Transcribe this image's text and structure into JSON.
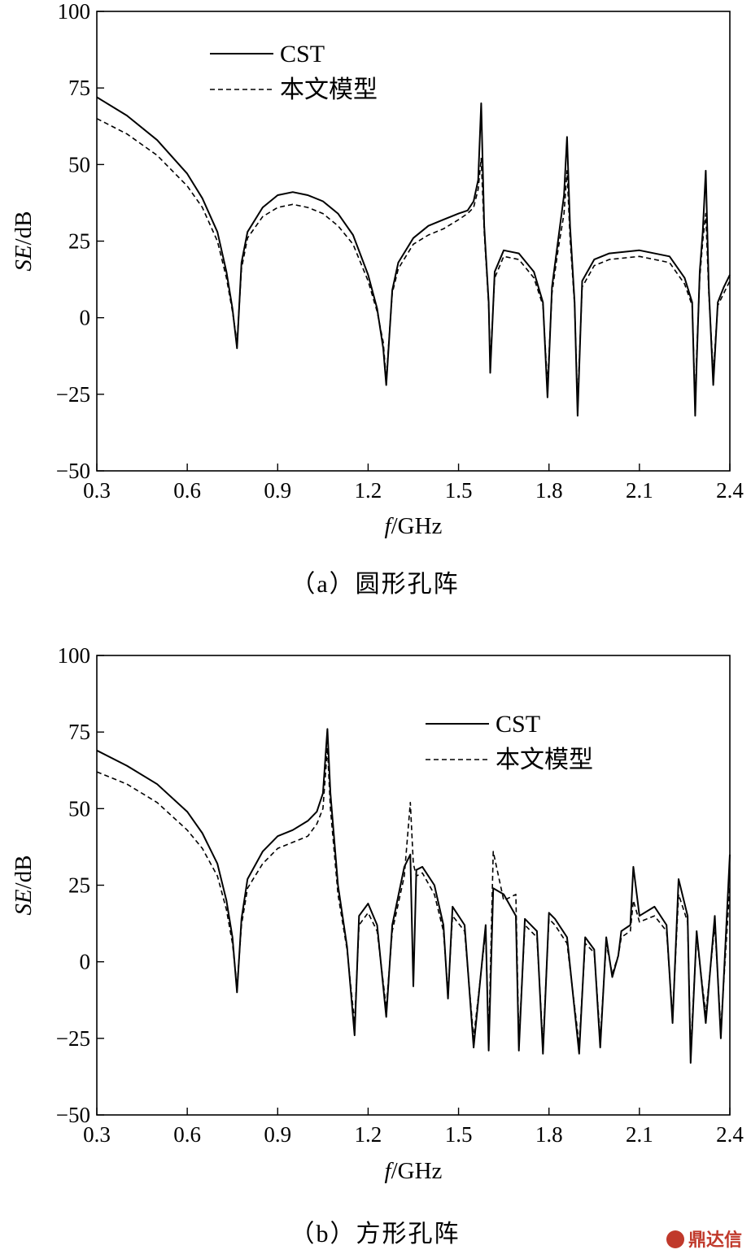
{
  "chart_data": [
    {
      "type": "line",
      "caption": "（a）圆形孔阵",
      "xlabel_italic": "f",
      "xlabel_rest": "/GHz",
      "ylabel_italic": "SE",
      "ylabel_rest": "/dB",
      "xlim": [
        0.3,
        2.4
      ],
      "ylim": [
        -50,
        100
      ],
      "xticks": [
        "0.3",
        "0.6",
        "0.9",
        "1.2",
        "1.5",
        "1.8",
        "2.1",
        "2.4"
      ],
      "yticks": [
        "100",
        "75",
        "50",
        "25",
        "0",
        "−25",
        "−50"
      ],
      "legend_position": "top-left",
      "grid": false,
      "series": [
        {
          "name": "CST",
          "style": "solid",
          "x": [
            0.3,
            0.4,
            0.5,
            0.6,
            0.65,
            0.7,
            0.73,
            0.75,
            0.765,
            0.78,
            0.8,
            0.85,
            0.9,
            0.95,
            1.0,
            1.05,
            1.1,
            1.15,
            1.2,
            1.23,
            1.25,
            1.26,
            1.28,
            1.3,
            1.35,
            1.4,
            1.45,
            1.5,
            1.53,
            1.55,
            1.565,
            1.575,
            1.585,
            1.6,
            1.605,
            1.62,
            1.65,
            1.7,
            1.75,
            1.78,
            1.795,
            1.81,
            1.83,
            1.85,
            1.86,
            1.87,
            1.885,
            1.895,
            1.91,
            1.95,
            2.0,
            2.1,
            2.2,
            2.25,
            2.275,
            2.285,
            2.29,
            2.3,
            2.31,
            2.32,
            2.33,
            2.345,
            2.36,
            2.38,
            2.4
          ],
          "y": [
            72,
            66,
            58,
            47,
            39,
            28,
            15,
            3,
            -10,
            18,
            28,
            36,
            40,
            41,
            40,
            38,
            34,
            27,
            14,
            3,
            -10,
            -22,
            9,
            18,
            26,
            30,
            32,
            34,
            35,
            38,
            45,
            70,
            30,
            5,
            -18,
            15,
            22,
            21,
            15,
            5,
            -26,
            10,
            25,
            40,
            59,
            30,
            5,
            -32,
            12,
            19,
            21,
            22,
            20,
            13,
            5,
            -32,
            -15,
            15,
            28,
            48,
            10,
            -22,
            5,
            10,
            14
          ]
        },
        {
          "name": "本文模型",
          "style": "dashed",
          "x": [
            0.3,
            0.4,
            0.5,
            0.6,
            0.65,
            0.7,
            0.73,
            0.75,
            0.765,
            0.78,
            0.8,
            0.85,
            0.9,
            0.95,
            1.0,
            1.05,
            1.1,
            1.15,
            1.2,
            1.23,
            1.25,
            1.26,
            1.28,
            1.3,
            1.35,
            1.4,
            1.45,
            1.5,
            1.53,
            1.55,
            1.565,
            1.575,
            1.585,
            1.6,
            1.605,
            1.62,
            1.65,
            1.7,
            1.75,
            1.78,
            1.795,
            1.81,
            1.83,
            1.85,
            1.86,
            1.87,
            1.885,
            1.895,
            1.91,
            1.95,
            2.0,
            2.1,
            2.2,
            2.25,
            2.275,
            2.285,
            2.29,
            2.3,
            2.31,
            2.32,
            2.33,
            2.345,
            2.36,
            2.38,
            2.4
          ],
          "y": [
            65,
            60,
            53,
            43,
            36,
            25,
            13,
            2,
            -8,
            16,
            26,
            33,
            36,
            37,
            36,
            34,
            30,
            24,
            12,
            2,
            -8,
            -20,
            8,
            16,
            24,
            27,
            29,
            32,
            34,
            36,
            42,
            52,
            28,
            4,
            -15,
            13,
            20,
            19,
            13,
            4,
            -22,
            8,
            22,
            34,
            48,
            26,
            4,
            -28,
            10,
            17,
            19,
            20,
            18,
            11,
            4,
            -28,
            -12,
            13,
            25,
            34,
            8,
            -18,
            4,
            8,
            12
          ]
        }
      ]
    },
    {
      "type": "line",
      "caption": "（b）方形孔阵",
      "xlabel_italic": "f",
      "xlabel_rest": "/GHz",
      "ylabel_italic": "SE",
      "ylabel_rest": "/dB",
      "xlim": [
        0.3,
        2.4
      ],
      "ylim": [
        -50,
        100
      ],
      "xticks": [
        "0.3",
        "0.6",
        "0.9",
        "1.2",
        "1.5",
        "1.8",
        "2.1",
        "2.4"
      ],
      "yticks": [
        "100",
        "75",
        "50",
        "25",
        "0",
        "−25",
        "−50"
      ],
      "legend_position": "top-right",
      "grid": false,
      "series": [
        {
          "name": "CST",
          "style": "solid",
          "x": [
            0.3,
            0.4,
            0.5,
            0.6,
            0.65,
            0.7,
            0.73,
            0.75,
            0.765,
            0.78,
            0.8,
            0.85,
            0.9,
            0.95,
            1.0,
            1.03,
            1.05,
            1.065,
            1.075,
            1.1,
            1.13,
            1.155,
            1.17,
            1.2,
            1.23,
            1.26,
            1.28,
            1.32,
            1.34,
            1.35,
            1.36,
            1.38,
            1.42,
            1.45,
            1.465,
            1.48,
            1.52,
            1.55,
            1.59,
            1.6,
            1.615,
            1.65,
            1.69,
            1.7,
            1.72,
            1.76,
            1.78,
            1.8,
            1.82,
            1.86,
            1.9,
            1.92,
            1.95,
            1.97,
            1.99,
            2.01,
            2.03,
            2.04,
            2.07,
            2.08,
            2.1,
            2.15,
            2.19,
            2.21,
            2.23,
            2.26,
            2.27,
            2.29,
            2.32,
            2.35,
            2.37,
            2.4
          ],
          "y": [
            69,
            64,
            58,
            49,
            42,
            32,
            20,
            8,
            -10,
            14,
            27,
            36,
            41,
            43,
            46,
            49,
            55,
            76,
            55,
            25,
            5,
            -24,
            15,
            19,
            12,
            -18,
            12,
            31,
            35,
            -8,
            30,
            31,
            25,
            12,
            -12,
            18,
            12,
            -28,
            12,
            -29,
            24,
            22,
            15,
            -29,
            14,
            10,
            -30,
            16,
            14,
            8,
            -30,
            8,
            4,
            -28,
            8,
            -5,
            2,
            10,
            12,
            31,
            15,
            18,
            12,
            -20,
            27,
            15,
            -33,
            10,
            -20,
            15,
            -25,
            35
          ]
        },
        {
          "name": "本文模型",
          "style": "dashed",
          "x": [
            0.3,
            0.4,
            0.5,
            0.6,
            0.65,
            0.7,
            0.73,
            0.75,
            0.765,
            0.78,
            0.8,
            0.85,
            0.9,
            0.95,
            1.0,
            1.03,
            1.05,
            1.065,
            1.075,
            1.1,
            1.13,
            1.155,
            1.17,
            1.2,
            1.23,
            1.26,
            1.28,
            1.32,
            1.34,
            1.35,
            1.36,
            1.38,
            1.42,
            1.45,
            1.465,
            1.48,
            1.52,
            1.55,
            1.59,
            1.6,
            1.615,
            1.65,
            1.69,
            1.7,
            1.72,
            1.76,
            1.78,
            1.8,
            1.82,
            1.86,
            1.9,
            1.92,
            1.95,
            1.97,
            1.99,
            2.01,
            2.03,
            2.04,
            2.07,
            2.08,
            2.1,
            2.15,
            2.19,
            2.21,
            2.23,
            2.26,
            2.27,
            2.29,
            2.32,
            2.35,
            2.37,
            2.4
          ],
          "y": [
            62,
            58,
            52,
            43,
            37,
            28,
            17,
            6,
            -8,
            12,
            24,
            32,
            37,
            39,
            41,
            45,
            50,
            70,
            50,
            22,
            4,
            -20,
            12,
            16,
            10,
            -15,
            10,
            28,
            52,
            32,
            28,
            29,
            22,
            10,
            -10,
            15,
            10,
            -25,
            10,
            -26,
            36,
            20,
            22,
            -26,
            12,
            8,
            -27,
            14,
            12,
            6,
            -27,
            6,
            3,
            -25,
            6,
            -4,
            2,
            8,
            10,
            20,
            13,
            15,
            10,
            -18,
            22,
            13,
            -29,
            8,
            -17,
            12,
            -22,
            25
          ]
        }
      ]
    }
  ],
  "watermark": {
    "text": "鼎达信"
  }
}
